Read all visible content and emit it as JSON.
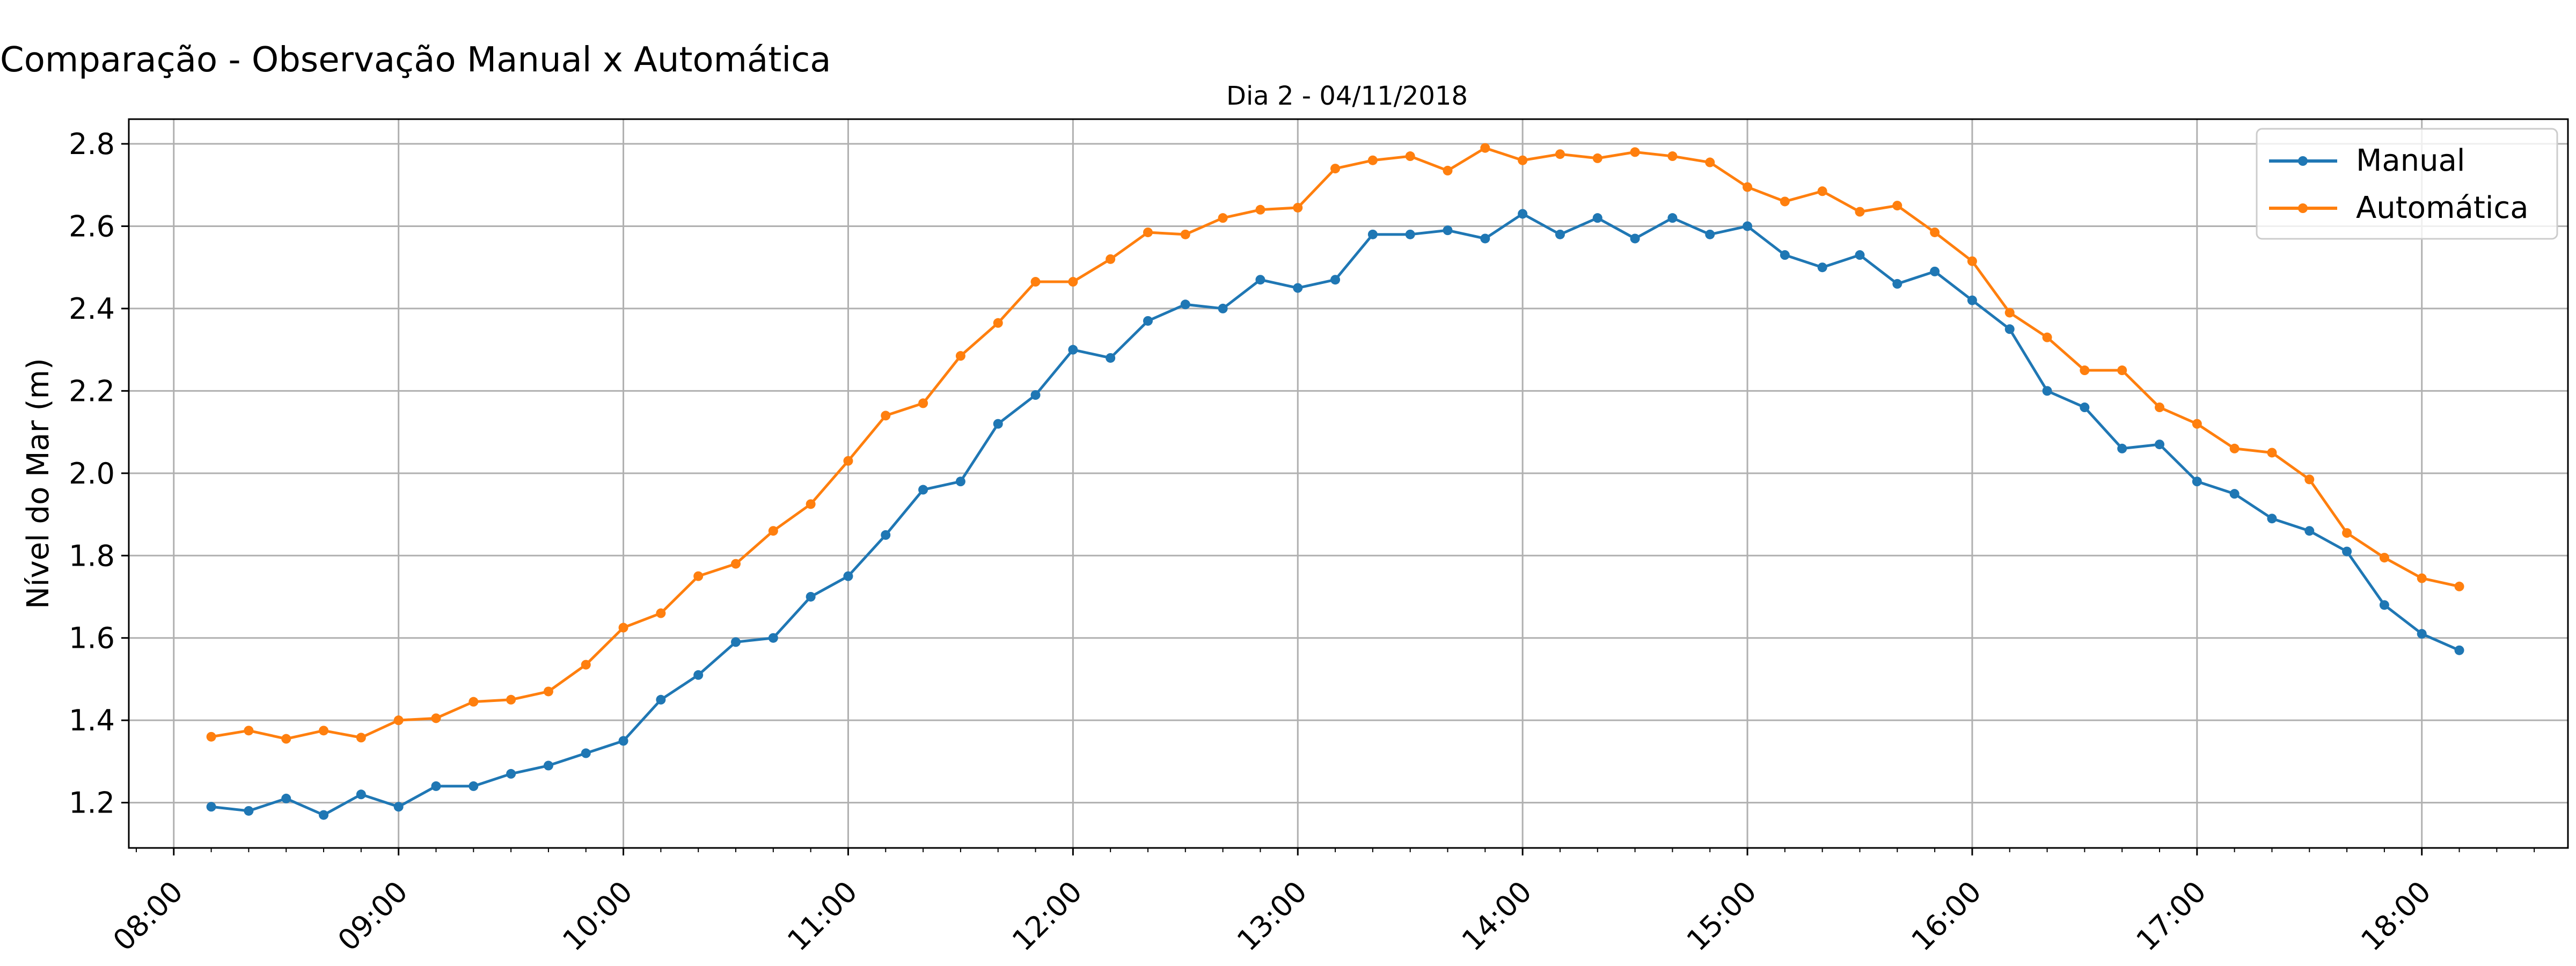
{
  "figure_title": "Comparação - Observação Manual x Automática",
  "chart_data": {
    "type": "line",
    "title": "Dia 2 - 04/11/2018",
    "xlabel": "",
    "ylabel": "Nível do Mar (m)",
    "xlim": [
      "07:48",
      "18:39"
    ],
    "ylim": [
      1.09,
      2.86
    ],
    "yticks": [
      1.2,
      1.4,
      1.6,
      1.8,
      2.0,
      2.2,
      2.4,
      2.6,
      2.8
    ],
    "ytick_labels": [
      "1.2",
      "1.4",
      "1.6",
      "1.8",
      "2.0",
      "2.2",
      "2.4",
      "2.6",
      "2.8"
    ],
    "xticks": [
      "08:00",
      "09:00",
      "10:00",
      "11:00",
      "12:00",
      "13:00",
      "14:00",
      "15:00",
      "16:00",
      "17:00",
      "18:00"
    ],
    "grid": true,
    "legend": "top-right",
    "x": [
      "08:10",
      "08:20",
      "08:30",
      "08:40",
      "08:50",
      "09:00",
      "09:10",
      "09:20",
      "09:30",
      "09:40",
      "09:50",
      "10:00",
      "10:10",
      "10:20",
      "10:30",
      "10:40",
      "10:50",
      "11:00",
      "11:10",
      "11:20",
      "11:30",
      "11:40",
      "11:50",
      "12:00",
      "12:10",
      "12:20",
      "12:30",
      "12:40",
      "12:50",
      "13:00",
      "13:10",
      "13:20",
      "13:30",
      "13:40",
      "13:50",
      "14:00",
      "14:10",
      "14:20",
      "14:30",
      "14:40",
      "14:50",
      "15:00",
      "15:10",
      "15:20",
      "15:30",
      "15:40",
      "15:50",
      "16:00",
      "16:10",
      "16:20",
      "16:30",
      "16:40",
      "16:50",
      "17:00",
      "17:10",
      "17:20",
      "17:30",
      "17:40",
      "17:50",
      "18:00",
      "18:10"
    ],
    "series": [
      {
        "name": "Manual",
        "color": "#1f77b4",
        "values": [
          1.19,
          1.18,
          1.21,
          1.17,
          1.22,
          1.19,
          1.24,
          1.24,
          1.27,
          1.29,
          1.32,
          1.35,
          1.45,
          1.51,
          1.59,
          1.6,
          1.7,
          1.75,
          1.85,
          1.96,
          1.98,
          2.12,
          2.19,
          2.3,
          2.28,
          2.37,
          2.41,
          2.4,
          2.47,
          2.45,
          2.47,
          2.58,
          2.58,
          2.59,
          2.57,
          2.63,
          2.58,
          2.62,
          2.57,
          2.62,
          2.58,
          2.6,
          2.53,
          2.5,
          2.53,
          2.46,
          2.49,
          2.42,
          2.35,
          2.2,
          2.16,
          2.06,
          2.07,
          1.98,
          1.95,
          1.89,
          1.86,
          1.81,
          1.68,
          1.61,
          1.57
        ]
      },
      {
        "name": "Automática",
        "color": "#ff7f0e",
        "values": [
          1.36,
          1.375,
          1.355,
          1.375,
          1.358,
          1.4,
          1.405,
          1.445,
          1.45,
          1.47,
          1.535,
          1.625,
          1.66,
          1.75,
          1.78,
          1.86,
          1.925,
          2.03,
          2.14,
          2.17,
          2.285,
          2.365,
          2.465,
          2.465,
          2.52,
          2.585,
          2.58,
          2.62,
          2.64,
          2.645,
          2.74,
          2.76,
          2.77,
          2.735,
          2.79,
          2.76,
          2.775,
          2.765,
          2.78,
          2.77,
          2.755,
          2.695,
          2.66,
          2.685,
          2.635,
          2.65,
          2.585,
          2.515,
          2.39,
          2.33,
          2.25,
          2.25,
          2.16,
          2.12,
          2.06,
          2.05,
          1.985,
          1.855,
          1.795,
          1.745,
          1.725
        ]
      }
    ]
  }
}
